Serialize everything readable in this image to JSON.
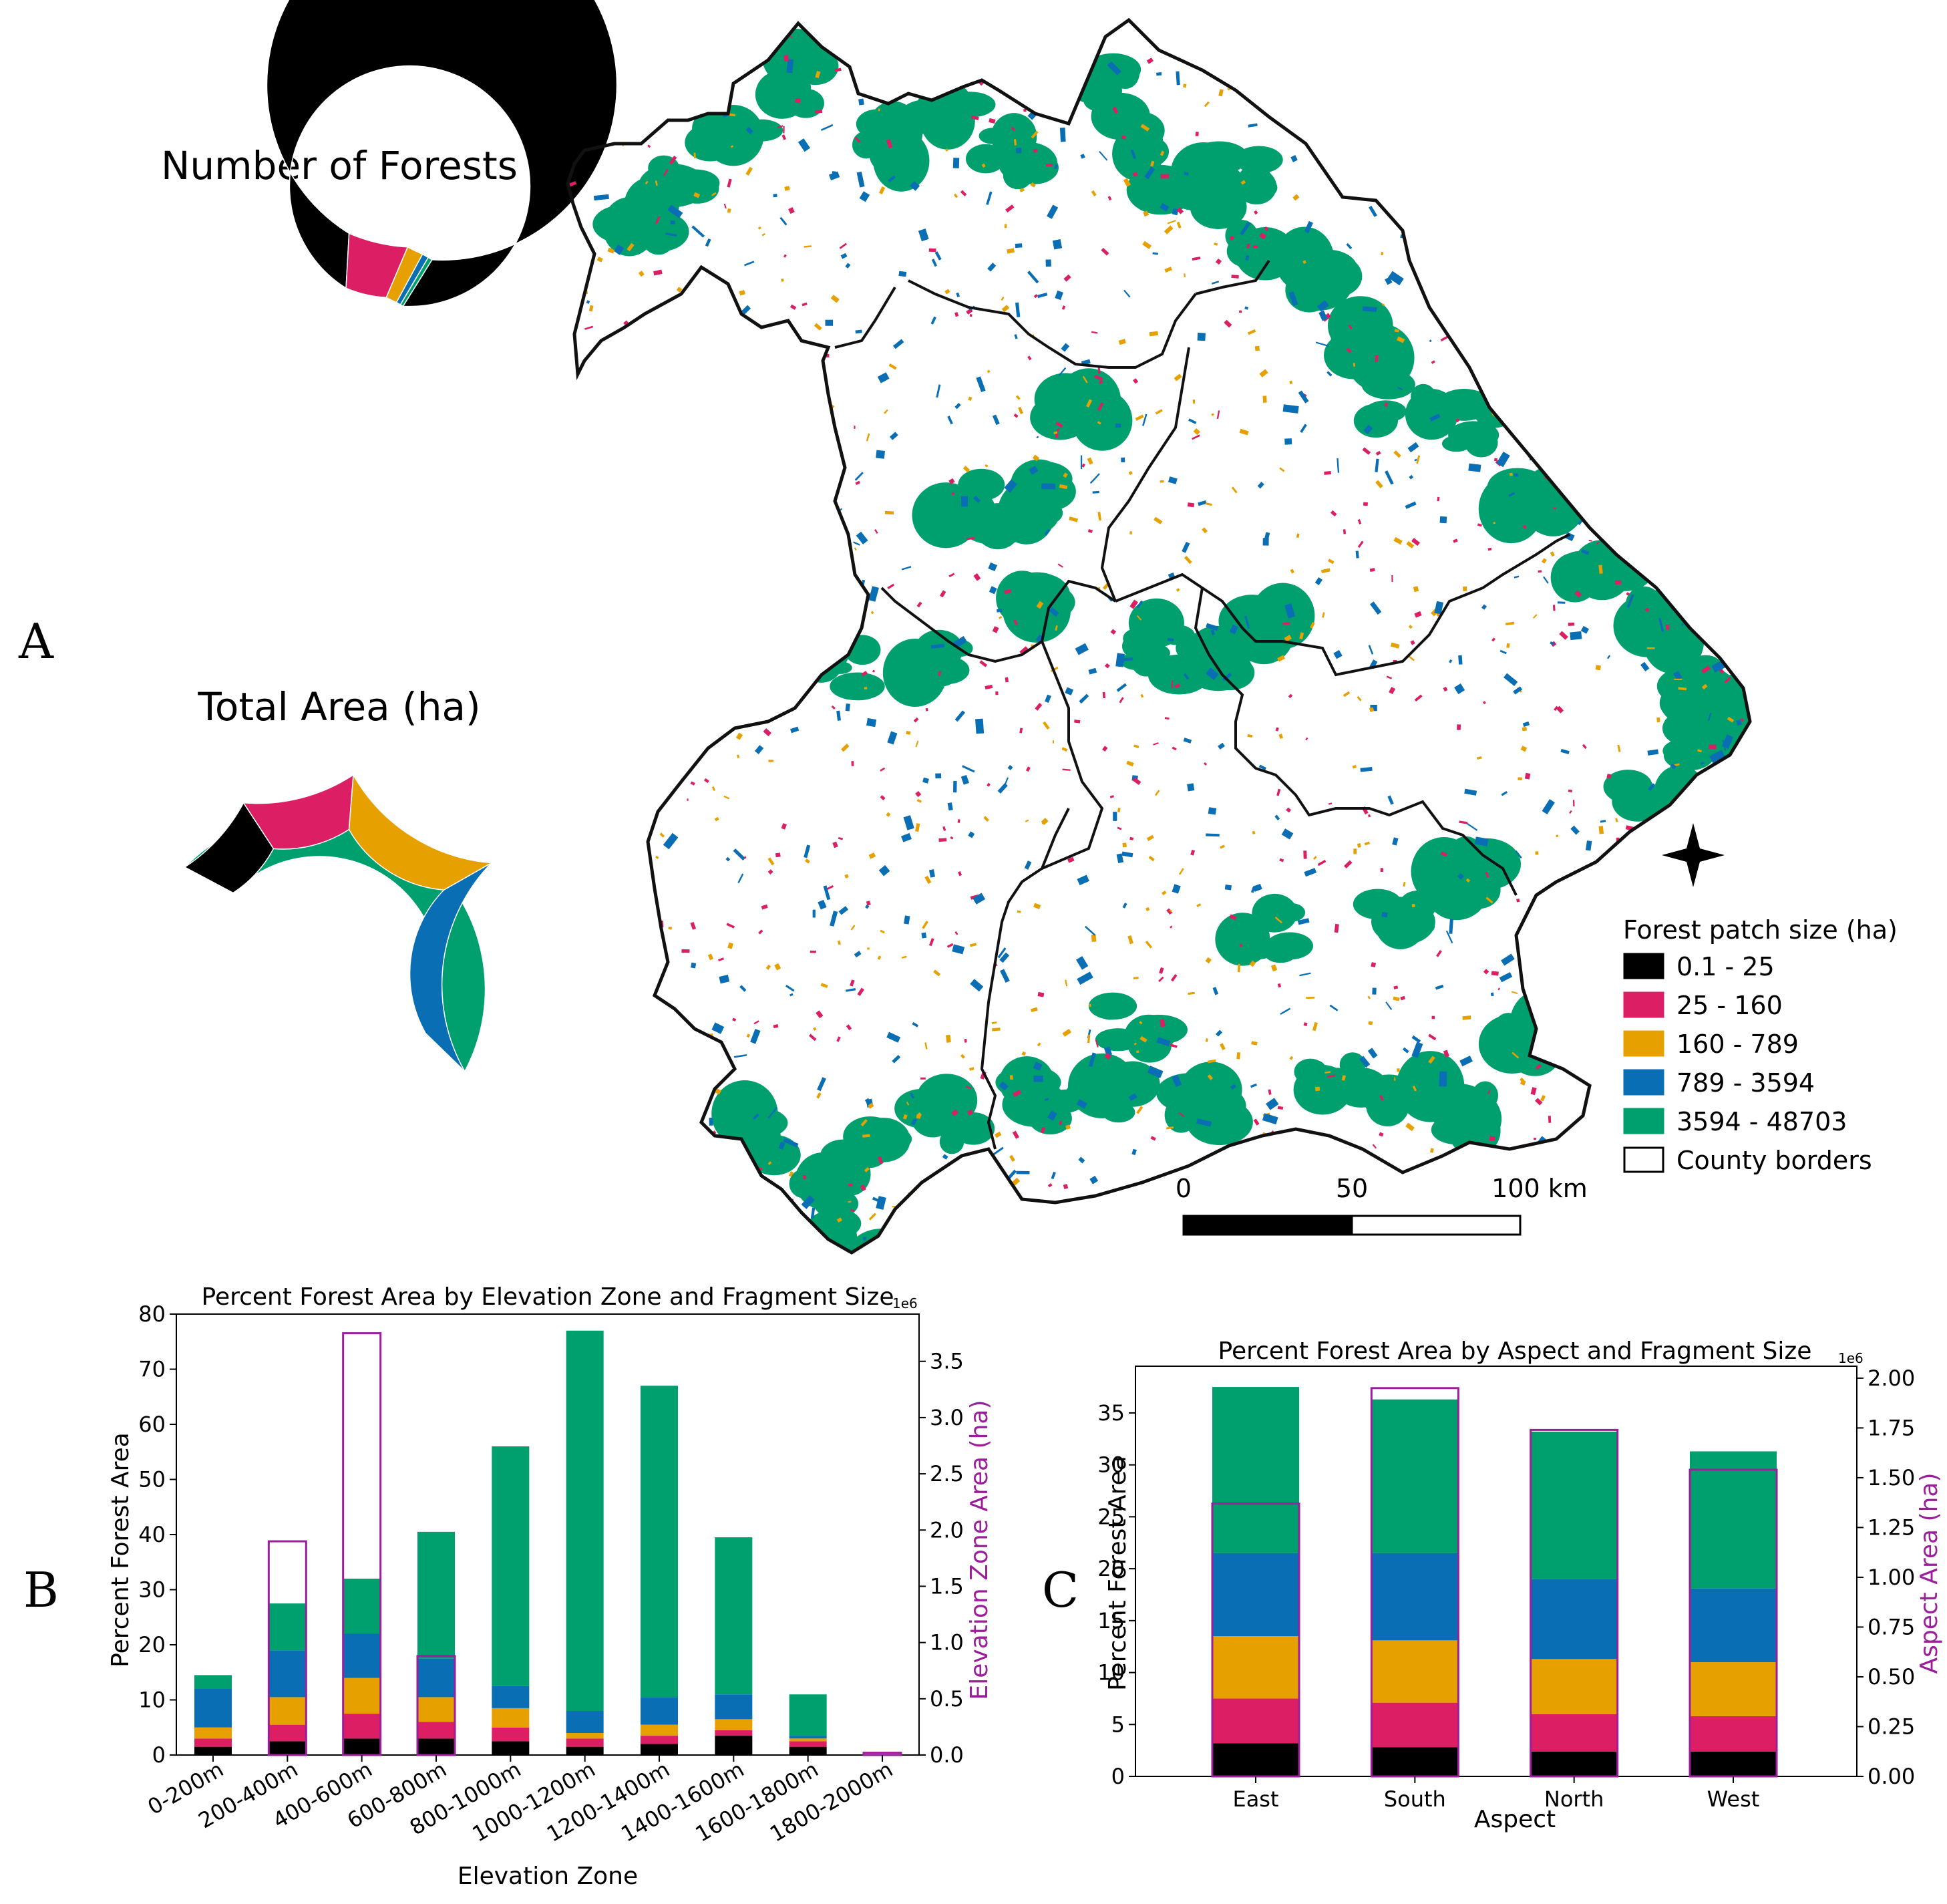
{
  "colors": {
    "black": "#000000",
    "pink": "#dc1e64",
    "orange": "#e6a000",
    "blue": "#0a6eb4",
    "green": "#00a06e",
    "purple": "#9b1e9b",
    "border": "#111111"
  },
  "panels": {
    "a": "A",
    "b": "B",
    "c": "C"
  },
  "donuts": [
    {
      "title": "Number of Forests",
      "slices": [
        {
          "class": "0.1 - 25",
          "fraction": 0.92,
          "color": "#000000"
        },
        {
          "class": "25 - 160",
          "fraction": 0.055,
          "color": "#dc1e64"
        },
        {
          "class": "160 - 789",
          "fraction": 0.015,
          "color": "#e6a000"
        },
        {
          "class": "789 - 3594",
          "fraction": 0.006,
          "color": "#0a6eb4"
        },
        {
          "class": "3594 - 48703",
          "fraction": 0.004,
          "color": "#00a06e"
        }
      ]
    },
    {
      "title": "Total Area (ha)",
      "slices": [
        {
          "class": "3594 - 48703",
          "fraction": 0.455,
          "color": "#00a06e"
        },
        {
          "class": "789 - 3594",
          "fraction": 0.205,
          "color": "#0a6eb4"
        },
        {
          "class": "160 - 789",
          "fraction": 0.155,
          "color": "#e6a000"
        },
        {
          "class": "25 - 160",
          "fraction": 0.105,
          "color": "#dc1e64"
        },
        {
          "class": "0.1 - 25",
          "fraction": 0.08,
          "color": "#000000"
        }
      ]
    }
  ],
  "map": {
    "legend_title": "Forest patch size (ha)",
    "legend_items": [
      {
        "label": "0.1 - 25",
        "color": "#000000"
      },
      {
        "label": "25 - 160",
        "color": "#dc1e64"
      },
      {
        "label": "160 - 789",
        "color": "#e6a000"
      },
      {
        "label": "789 - 3594",
        "color": "#0a6eb4"
      },
      {
        "label": "3594 - 48703",
        "color": "#00a06e"
      },
      {
        "label": "County borders",
        "color": "#ffffff"
      }
    ],
    "scale_labels": [
      "0",
      "50",
      "100 km"
    ],
    "north_arrow": "compass-star-icon"
  },
  "chart_data": [
    {
      "type": "bar",
      "stacked": true,
      "title": "Percent Forest Area by Elevation Zone and Fragment Size",
      "xlabel": "Elevation Zone",
      "ylabel": "Percent Forest Area",
      "y2label": "Elevation Zone Area (ha)",
      "y2_offset_text": "1e6",
      "ylim": [
        0,
        80
      ],
      "y2lim": [
        0,
        3.92
      ],
      "yticks": [
        0,
        10,
        20,
        30,
        40,
        50,
        60,
        70,
        80
      ],
      "y2ticks": [
        "0.0",
        "0.5",
        "1.0",
        "1.5",
        "2.0",
        "2.5",
        "3.0",
        "3.5"
      ],
      "categories": [
        "0-200m",
        "200-400m",
        "400-600m",
        "600-800m",
        "800-1000m",
        "1000-1200m",
        "1200-1400m",
        "1400-1600m",
        "1600-1800m",
        "1800-2000m"
      ],
      "series": [
        {
          "name": "0.1 - 25",
          "color": "#000000",
          "values": [
            1.5,
            2.5,
            3,
            3,
            2.5,
            1.5,
            2,
            3.5,
            1.5,
            0.1
          ]
        },
        {
          "name": "25 - 160",
          "color": "#dc1e64",
          "values": [
            1.5,
            3,
            4.5,
            3,
            2.5,
            1.5,
            1.5,
            1,
            1,
            0.05
          ]
        },
        {
          "name": "160 - 789",
          "color": "#e6a000",
          "values": [
            2,
            5,
            6.5,
            4.5,
            3.5,
            1,
            2,
            2,
            0.5,
            0.05
          ]
        },
        {
          "name": "789 - 3594",
          "color": "#0a6eb4",
          "values": [
            7,
            8.5,
            8,
            7,
            4,
            4,
            5,
            4.5,
            0.5,
            0
          ]
        },
        {
          "name": "3594 - 48703",
          "color": "#00a06e",
          "values": [
            2.5,
            8.5,
            10,
            23,
            43.5,
            69,
            56.5,
            28.5,
            7.5,
            0
          ]
        }
      ],
      "zone_area_1e6_ha": [
        0.0,
        1.9,
        3.75,
        0.88,
        0.0,
        0.0,
        0.0,
        0.0,
        0.0,
        0.02
      ]
    },
    {
      "type": "bar",
      "stacked": true,
      "title": "Percent Forest Area by Aspect and Fragment Size",
      "xlabel": "Aspect",
      "ylabel": "Percent Forest Area",
      "y2label": "Aspect Area (ha)",
      "y2_offset_text": "1e6",
      "ylim": [
        0,
        39.5
      ],
      "y2lim": [
        0,
        2.06
      ],
      "yticks": [
        0,
        5,
        10,
        15,
        20,
        25,
        30,
        35
      ],
      "y2ticks": [
        "0.00",
        "0.25",
        "0.50",
        "0.75",
        "1.00",
        "1.25",
        "1.50",
        "1.75",
        "2.00"
      ],
      "categories": [
        "East",
        "South",
        "North",
        "West"
      ],
      "series": [
        {
          "name": "0.1 - 25",
          "color": "#000000",
          "values": [
            3.2,
            2.8,
            2.4,
            2.4
          ]
        },
        {
          "name": "25 - 160",
          "color": "#dc1e64",
          "values": [
            4.3,
            4.3,
            3.6,
            3.4
          ]
        },
        {
          "name": "160 - 789",
          "color": "#e6a000",
          "values": [
            6,
            6,
            5.3,
            5.2
          ]
        },
        {
          "name": "789 - 3594",
          "color": "#0a6eb4",
          "values": [
            8,
            8.4,
            7.7,
            7.1
          ]
        },
        {
          "name": "3594 - 48703",
          "color": "#00a06e",
          "values": [
            16,
            14.8,
            14.2,
            13.2
          ]
        }
      ],
      "aspect_area_1e6_ha": [
        1.37,
        1.95,
        1.74,
        1.54
      ]
    }
  ]
}
